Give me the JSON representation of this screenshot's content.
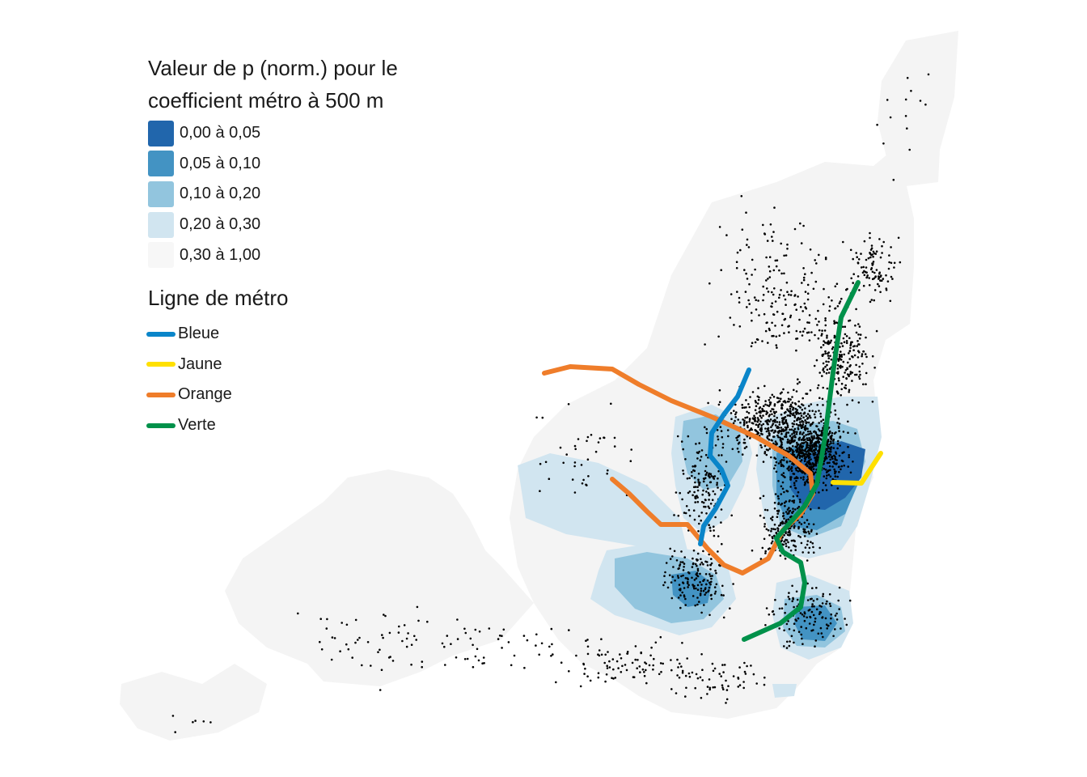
{
  "legend": {
    "fill_title_line1": "Valeur de p (norm.) pour le",
    "fill_title_line2": "coefficient métro à 500 m",
    "classes": [
      {
        "label": "0,00 à 0,05",
        "color": "#2166ac"
      },
      {
        "label": "0,05 à 0,10",
        "color": "#4393c3"
      },
      {
        "label": "0,10 à 0,20",
        "color": "#92c5de"
      },
      {
        "label": "0,20 à 0,30",
        "color": "#d1e5f0"
      },
      {
        "label": "0,30 à 1,00",
        "color": "#f7f7f7"
      }
    ],
    "line_title": "Ligne de métro",
    "lines": [
      {
        "label": "Bleue",
        "color": "#0a85c9"
      },
      {
        "label": "Jaune",
        "color": "#ffe000"
      },
      {
        "label": "Orange",
        "color": "#ef7d2a"
      },
      {
        "label": "Verte",
        "color": "#00914a"
      }
    ]
  }
}
